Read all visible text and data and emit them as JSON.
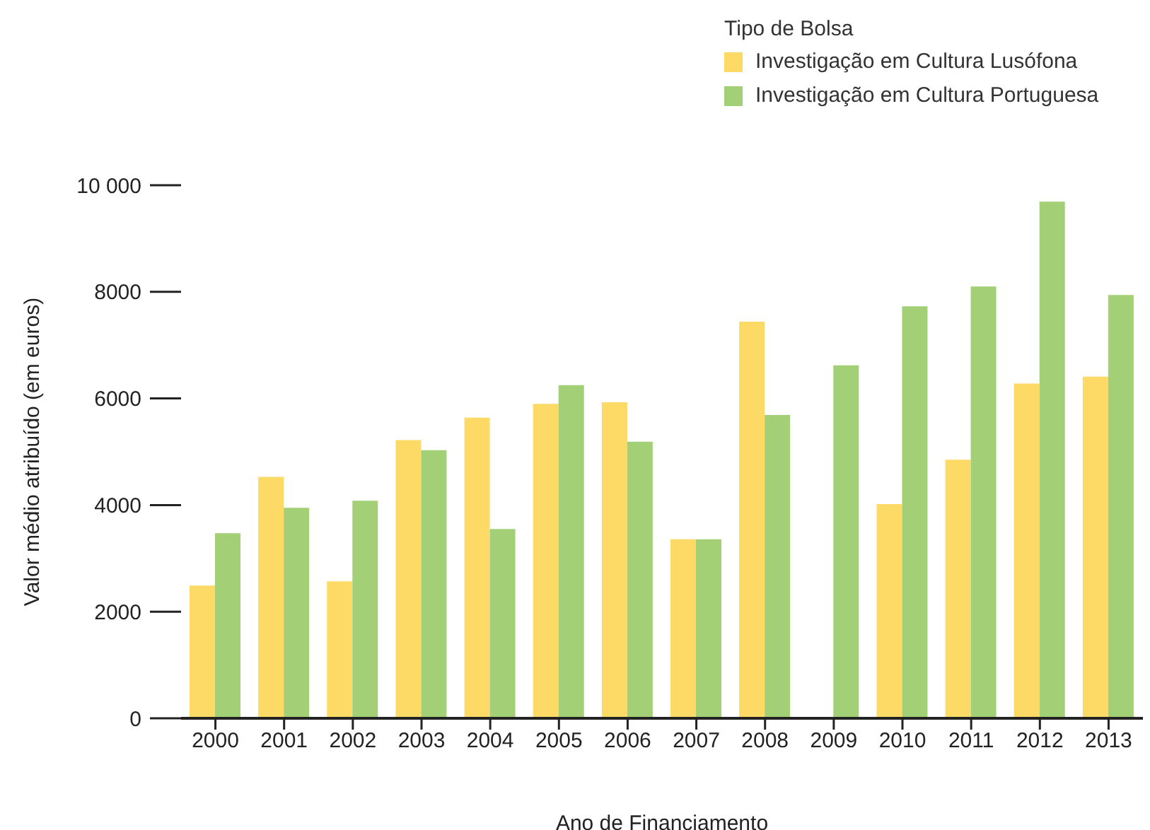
{
  "chart_data": {
    "type": "bar",
    "xlabel": "Ano de Financiamento",
    "ylabel": "Valor médio atribuído (em euros)",
    "legend_title": "Tipo de Bolsa",
    "categories": [
      "2000",
      "2001",
      "2002",
      "2003",
      "2004",
      "2005",
      "2006",
      "2007",
      "2008",
      "2009",
      "2010",
      "2011",
      "2012",
      "2013"
    ],
    "series": [
      {
        "name": "Investigação em Cultura Lusófona",
        "color": "#fdd966",
        "values": [
          2490,
          4530,
          2570,
          5220,
          5640,
          5900,
          5930,
          3360,
          7440,
          null,
          4020,
          4850,
          6280,
          6410
        ]
      },
      {
        "name": "Investigação em Cultura Portuguesa",
        "color": "#a3d077",
        "values": [
          3470,
          3950,
          4080,
          5030,
          3550,
          6250,
          5190,
          3360,
          5690,
          6620,
          7730,
          8100,
          9690,
          7940
        ]
      }
    ],
    "ylim": [
      0,
      10000
    ],
    "yticks": [
      0,
      2000,
      4000,
      6000,
      8000,
      {
        "value": 10000,
        "label": "10 000"
      }
    ],
    "grid": false,
    "legend": "top right"
  }
}
